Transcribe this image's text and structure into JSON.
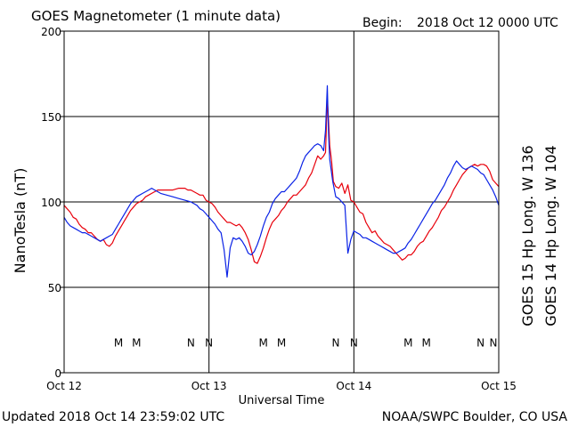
{
  "title": "GOES Magnetometer (1 minute data)",
  "begin_label": "Begin:",
  "begin_value": "2018 Oct 12 0000 UTC",
  "updated": "Updated 2018 Oct 14 23:59:02 UTC",
  "credit": "NOAA/SWPC Boulder, CO USA",
  "chart_data": {
    "type": "line",
    "xlabel": "Universal Time",
    "ylabel": "NanoTesla (nT)",
    "ylim": [
      0,
      200
    ],
    "xlim": [
      0,
      72
    ],
    "x_unit": "hours since 2018 Oct 12 0000 UTC",
    "yticks": [
      "0",
      "50",
      "100",
      "150",
      "200"
    ],
    "xticks": [
      {
        "x": 0,
        "label": "Oct 12"
      },
      {
        "x": 24,
        "label": "Oct 13"
      },
      {
        "x": 48,
        "label": "Oct 14"
      },
      {
        "x": 72,
        "label": "Oct 15"
      }
    ],
    "grid": true,
    "series": [
      {
        "name": "GOES 15 Hp",
        "legend": "GOES 15 Hp  Long. W 136",
        "color": "#e8000b",
        "points": [
          [
            0,
            98
          ],
          [
            0.5,
            96
          ],
          [
            1,
            94
          ],
          [
            1.5,
            91
          ],
          [
            2,
            90
          ],
          [
            2.5,
            87
          ],
          [
            3,
            85
          ],
          [
            3.5,
            84
          ],
          [
            4,
            82
          ],
          [
            4.5,
            82
          ],
          [
            5,
            80
          ],
          [
            5.5,
            78
          ],
          [
            6,
            77
          ],
          [
            6.5,
            78
          ],
          [
            7,
            75
          ],
          [
            7.5,
            74
          ],
          [
            8,
            76
          ],
          [
            8.5,
            80
          ],
          [
            9,
            83
          ],
          [
            9.5,
            86
          ],
          [
            10,
            89
          ],
          [
            10.5,
            92
          ],
          [
            11,
            95
          ],
          [
            11.5,
            97
          ],
          [
            12,
            99
          ],
          [
            12.5,
            100
          ],
          [
            13,
            101
          ],
          [
            13.5,
            103
          ],
          [
            14,
            104
          ],
          [
            14.5,
            105
          ],
          [
            15,
            106
          ],
          [
            15.5,
            107
          ],
          [
            16,
            107
          ],
          [
            16.5,
            107
          ],
          [
            17,
            107
          ],
          [
            18,
            107
          ],
          [
            19,
            108
          ],
          [
            20,
            108
          ],
          [
            20.5,
            107
          ],
          [
            21,
            107
          ],
          [
            21.5,
            106
          ],
          [
            22,
            105
          ],
          [
            22.5,
            104
          ],
          [
            23,
            104
          ],
          [
            23.5,
            101
          ],
          [
            24,
            100
          ],
          [
            24.5,
            99
          ],
          [
            25,
            97
          ],
          [
            25.5,
            94
          ],
          [
            26,
            92
          ],
          [
            26.5,
            90
          ],
          [
            27,
            88
          ],
          [
            27.5,
            88
          ],
          [
            28,
            87
          ],
          [
            28.5,
            86
          ],
          [
            29,
            87
          ],
          [
            29.5,
            85
          ],
          [
            30,
            82
          ],
          [
            30.5,
            78
          ],
          [
            31,
            72
          ],
          [
            31.5,
            65
          ],
          [
            32,
            64
          ],
          [
            32.5,
            68
          ],
          [
            33,
            73
          ],
          [
            33.5,
            79
          ],
          [
            34,
            84
          ],
          [
            34.5,
            88
          ],
          [
            35,
            90
          ],
          [
            35.5,
            92
          ],
          [
            36,
            95
          ],
          [
            36.5,
            97
          ],
          [
            37,
            100
          ],
          [
            37.5,
            102
          ],
          [
            38,
            104
          ],
          [
            38.5,
            104
          ],
          [
            39,
            106
          ],
          [
            39.5,
            108
          ],
          [
            40,
            110
          ],
          [
            40.5,
            114
          ],
          [
            41,
            117
          ],
          [
            41.5,
            122
          ],
          [
            42,
            127
          ],
          [
            42.5,
            125
          ],
          [
            43,
            127
          ],
          [
            43.3,
            129
          ],
          [
            43.6,
            160
          ],
          [
            43.8,
            148
          ],
          [
            44,
            133
          ],
          [
            44.3,
            124
          ],
          [
            44.6,
            112
          ],
          [
            45,
            109
          ],
          [
            45.5,
            108
          ],
          [
            46,
            111
          ],
          [
            46.5,
            105
          ],
          [
            47,
            110
          ],
          [
            47.5,
            101
          ],
          [
            48,
            100
          ],
          [
            48.5,
            97
          ],
          [
            49,
            94
          ],
          [
            49.5,
            93
          ],
          [
            50,
            88
          ],
          [
            50.5,
            85
          ],
          [
            51,
            82
          ],
          [
            51.5,
            83
          ],
          [
            52,
            80
          ],
          [
            52.5,
            78
          ],
          [
            53,
            76
          ],
          [
            53.5,
            75
          ],
          [
            54,
            74
          ],
          [
            54.5,
            72
          ],
          [
            55,
            70
          ],
          [
            55.5,
            68
          ],
          [
            56,
            66
          ],
          [
            56.5,
            67
          ],
          [
            57,
            69
          ],
          [
            57.5,
            69
          ],
          [
            58,
            71
          ],
          [
            58.5,
            74
          ],
          [
            59,
            76
          ],
          [
            59.5,
            77
          ],
          [
            60,
            80
          ],
          [
            60.5,
            83
          ],
          [
            61,
            85
          ],
          [
            61.5,
            88
          ],
          [
            62,
            91
          ],
          [
            62.5,
            95
          ],
          [
            63,
            97
          ],
          [
            63.5,
            100
          ],
          [
            64,
            103
          ],
          [
            64.5,
            107
          ],
          [
            65,
            110
          ],
          [
            65.5,
            113
          ],
          [
            66,
            116
          ],
          [
            66.5,
            118
          ],
          [
            67,
            120
          ],
          [
            67.5,
            121
          ],
          [
            68,
            122
          ],
          [
            68.5,
            121
          ],
          [
            69,
            122
          ],
          [
            69.5,
            122
          ],
          [
            70,
            121
          ],
          [
            70.5,
            118
          ],
          [
            71,
            113
          ],
          [
            71.5,
            111
          ],
          [
            72,
            109
          ]
        ]
      },
      {
        "name": "GOES 14 Hp",
        "legend": "GOES 14 Hp  Long. W 104",
        "color": "#0a22e6",
        "points": [
          [
            0,
            91
          ],
          [
            0.5,
            88
          ],
          [
            1,
            86
          ],
          [
            1.5,
            85
          ],
          [
            2,
            84
          ],
          [
            2.5,
            83
          ],
          [
            3,
            82
          ],
          [
            3.5,
            82
          ],
          [
            4,
            81
          ],
          [
            4.5,
            80
          ],
          [
            5,
            79
          ],
          [
            5.5,
            78
          ],
          [
            6,
            77
          ],
          [
            6.5,
            78
          ],
          [
            7,
            79
          ],
          [
            7.5,
            80
          ],
          [
            8,
            81
          ],
          [
            8.5,
            84
          ],
          [
            9,
            87
          ],
          [
            9.5,
            90
          ],
          [
            10,
            93
          ],
          [
            10.5,
            96
          ],
          [
            11,
            99
          ],
          [
            11.5,
            101
          ],
          [
            12,
            103
          ],
          [
            12.5,
            104
          ],
          [
            13,
            105
          ],
          [
            13.5,
            106
          ],
          [
            14,
            107
          ],
          [
            14.5,
            108
          ],
          [
            15,
            107
          ],
          [
            15.5,
            106
          ],
          [
            16,
            105
          ],
          [
            17,
            104
          ],
          [
            18,
            103
          ],
          [
            19,
            102
          ],
          [
            20,
            101
          ],
          [
            21,
            100
          ],
          [
            21.5,
            99
          ],
          [
            22,
            98
          ],
          [
            22.5,
            96
          ],
          [
            23,
            95
          ],
          [
            23.5,
            93
          ],
          [
            24,
            91
          ],
          [
            24.5,
            89
          ],
          [
            25,
            87
          ],
          [
            25.5,
            84
          ],
          [
            26,
            82
          ],
          [
            26.5,
            72
          ],
          [
            27,
            56
          ],
          [
            27.5,
            73
          ],
          [
            28,
            79
          ],
          [
            28.5,
            78
          ],
          [
            29,
            79
          ],
          [
            29.5,
            77
          ],
          [
            30,
            74
          ],
          [
            30.5,
            70
          ],
          [
            31,
            69
          ],
          [
            31.5,
            71
          ],
          [
            32,
            75
          ],
          [
            32.5,
            80
          ],
          [
            33,
            86
          ],
          [
            33.5,
            91
          ],
          [
            34,
            94
          ],
          [
            34.5,
            99
          ],
          [
            35,
            102
          ],
          [
            35.5,
            104
          ],
          [
            36,
            106
          ],
          [
            36.5,
            106
          ],
          [
            37,
            108
          ],
          [
            37.5,
            110
          ],
          [
            38,
            112
          ],
          [
            38.5,
            114
          ],
          [
            39,
            118
          ],
          [
            39.5,
            123
          ],
          [
            40,
            127
          ],
          [
            40.5,
            129
          ],
          [
            41,
            131
          ],
          [
            41.5,
            133
          ],
          [
            42,
            134
          ],
          [
            42.5,
            133
          ],
          [
            43,
            130
          ],
          [
            43.3,
            142
          ],
          [
            43.6,
            168
          ],
          [
            43.8,
            140
          ],
          [
            44,
            125
          ],
          [
            44.5,
            112
          ],
          [
            45,
            103
          ],
          [
            45.5,
            102
          ],
          [
            46,
            100
          ],
          [
            46.5,
            98
          ],
          [
            47,
            70
          ],
          [
            47.5,
            78
          ],
          [
            48,
            83
          ],
          [
            48.5,
            82
          ],
          [
            49,
            81
          ],
          [
            49.5,
            79
          ],
          [
            50,
            79
          ],
          [
            50.5,
            78
          ],
          [
            51,
            77
          ],
          [
            51.5,
            76
          ],
          [
            52,
            75
          ],
          [
            52.5,
            74
          ],
          [
            53,
            73
          ],
          [
            53.5,
            72
          ],
          [
            54,
            71
          ],
          [
            54.5,
            70
          ],
          [
            55,
            70
          ],
          [
            55.5,
            71
          ],
          [
            56,
            72
          ],
          [
            56.5,
            73
          ],
          [
            57,
            76
          ],
          [
            57.5,
            78
          ],
          [
            58,
            81
          ],
          [
            58.5,
            84
          ],
          [
            59,
            87
          ],
          [
            59.5,
            90
          ],
          [
            60,
            93
          ],
          [
            60.5,
            96
          ],
          [
            61,
            99
          ],
          [
            61.5,
            101
          ],
          [
            62,
            104
          ],
          [
            62.5,
            107
          ],
          [
            63,
            110
          ],
          [
            63.5,
            114
          ],
          [
            64,
            117
          ],
          [
            64.5,
            121
          ],
          [
            65,
            124
          ],
          [
            65.5,
            122
          ],
          [
            66,
            120
          ],
          [
            66.5,
            119
          ],
          [
            67,
            120
          ],
          [
            67.5,
            121
          ],
          [
            68,
            120
          ],
          [
            68.5,
            119
          ],
          [
            69,
            117
          ],
          [
            69.5,
            116
          ],
          [
            70,
            113
          ],
          [
            70.5,
            110
          ],
          [
            71,
            107
          ],
          [
            71.5,
            103
          ],
          [
            72,
            98
          ]
        ]
      }
    ],
    "annotations": [
      {
        "text": "M",
        "x": 9.0,
        "series": "GOES 14 Hp"
      },
      {
        "text": "M",
        "x": 12.0,
        "series": "GOES 15 Hp"
      },
      {
        "text": "N",
        "x": 21.0,
        "series": "GOES 14 Hp"
      },
      {
        "text": "N",
        "x": 24.0,
        "series": "GOES 15 Hp"
      },
      {
        "text": "M",
        "x": 33.0,
        "series": "GOES 14 Hp"
      },
      {
        "text": "M",
        "x": 36.0,
        "series": "GOES 15 Hp"
      },
      {
        "text": "N",
        "x": 45.0,
        "series": "GOES 14 Hp"
      },
      {
        "text": "N",
        "x": 48.0,
        "series": "GOES 15 Hp"
      },
      {
        "text": "M",
        "x": 57.0,
        "series": "GOES 14 Hp"
      },
      {
        "text": "M",
        "x": 60.0,
        "series": "GOES 15 Hp"
      },
      {
        "text": "N",
        "x": 69.0,
        "series": "GOES 14 Hp"
      },
      {
        "text": "N",
        "x": 72.0,
        "series": "GOES 15 Hp"
      }
    ],
    "annotation_y": 18
  }
}
